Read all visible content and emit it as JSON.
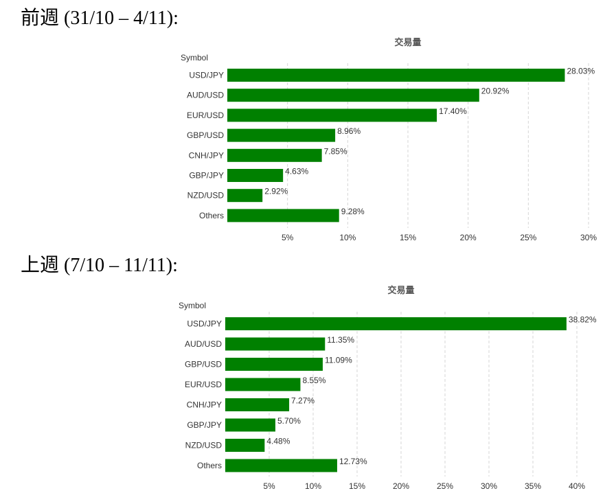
{
  "sections": [
    {
      "title": "前週 (31/10 – 4/11):"
    },
    {
      "title": "上週 (7/10 – 11/11):"
    }
  ],
  "colors": {
    "bar": "#008000"
  },
  "chart_data": [
    {
      "type": "bar",
      "orientation": "horizontal",
      "title": "交易量",
      "ylabel": "Symbol",
      "categories": [
        "USD/JPY",
        "AUD/USD",
        "EUR/USD",
        "GBP/USD",
        "CNH/JPY",
        "GBP/JPY",
        "NZD/USD",
        "Others"
      ],
      "values": [
        28.03,
        20.92,
        17.4,
        8.96,
        7.85,
        4.63,
        2.92,
        9.28
      ],
      "value_labels": [
        "28.03%",
        "20.92%",
        "17.40%",
        "8.96%",
        "7.85%",
        "4.63%",
        "2.92%",
        "9.28%"
      ],
      "xlim": [
        0,
        30
      ],
      "xticks": [
        5,
        10,
        15,
        20,
        25,
        30
      ],
      "xtick_labels": [
        "5%",
        "10%",
        "15%",
        "20%",
        "25%",
        "30%"
      ],
      "grid": true
    },
    {
      "type": "bar",
      "orientation": "horizontal",
      "title": "交易量",
      "ylabel": "Symbol",
      "categories": [
        "USD/JPY",
        "AUD/USD",
        "GBP/USD",
        "EUR/USD",
        "CNH/JPY",
        "GBP/JPY",
        "NZD/USD",
        "Others"
      ],
      "values": [
        38.82,
        11.35,
        11.09,
        8.55,
        7.27,
        5.7,
        4.48,
        12.73
      ],
      "value_labels": [
        "38.82%",
        "11.35%",
        "11.09%",
        "8.55%",
        "7.27%",
        "5.70%",
        "4.48%",
        "12.73%"
      ],
      "xlim": [
        0,
        40
      ],
      "xticks": [
        5,
        10,
        15,
        20,
        25,
        30,
        35,
        40
      ],
      "xtick_labels": [
        "5%",
        "10%",
        "15%",
        "20%",
        "25%",
        "30%",
        "35%",
        "40%"
      ],
      "grid": true
    }
  ]
}
